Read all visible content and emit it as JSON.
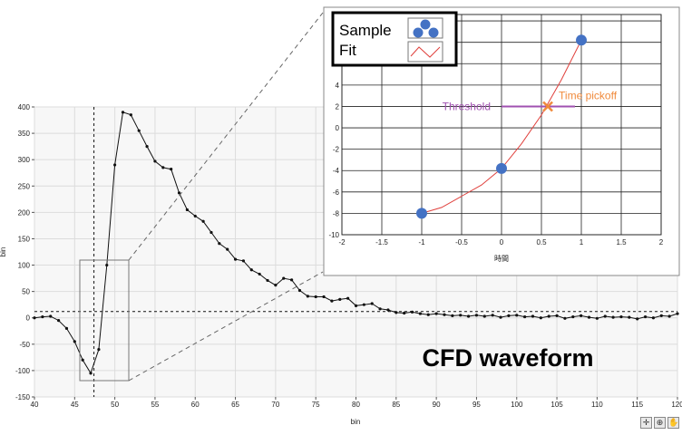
{
  "chart_data": [
    {
      "type": "line",
      "title": "",
      "xlabel": "bin",
      "ylabel": "bin",
      "xlim": [
        40,
        120
      ],
      "ylim": [
        -150,
        400
      ],
      "xticks": [
        40,
        45,
        50,
        55,
        60,
        65,
        70,
        75,
        80,
        85,
        90,
        95,
        100,
        105,
        110,
        115,
        120
      ],
      "yticks": [
        -150,
        -100,
        -50,
        0,
        50,
        100,
        150,
        200,
        250,
        300,
        350,
        400
      ],
      "grid": true,
      "annotation": "CFD waveform",
      "reference_lines": {
        "vertical_x": 47.4,
        "horizontal_y": 12
      },
      "series": [
        {
          "x": [
            40,
            41,
            42,
            43,
            44,
            45,
            46,
            47,
            48,
            49,
            50,
            51,
            52,
            53,
            54,
            55,
            56,
            57,
            58,
            59,
            60,
            61,
            62,
            63,
            64,
            65,
            66,
            67,
            68,
            69,
            70,
            71,
            72,
            73,
            74,
            75,
            76,
            77,
            78,
            79,
            80,
            81,
            82,
            83,
            84,
            85,
            86,
            87,
            88,
            89,
            90,
            91,
            92,
            93,
            94,
            95,
            96,
            97,
            98,
            99,
            100,
            101,
            102,
            103,
            104,
            105,
            106,
            107,
            108,
            109,
            110,
            111,
            112,
            113,
            114,
            115,
            116,
            117,
            118,
            119,
            120
          ],
          "values": [
            0,
            2,
            3,
            -5,
            -20,
            -45,
            -80,
            -105,
            -60,
            100,
            290,
            390,
            385,
            355,
            325,
            297,
            285,
            282,
            237,
            205,
            193,
            183,
            162,
            141,
            130,
            111,
            108,
            91,
            83,
            71,
            62,
            75,
            72,
            52,
            41,
            40,
            40,
            32,
            35,
            37,
            23,
            25,
            27,
            17,
            15,
            10,
            9,
            11,
            8,
            6,
            8,
            6,
            4,
            5,
            3,
            5,
            3,
            5,
            1,
            4,
            5,
            2,
            3,
            0,
            3,
            4,
            -1,
            2,
            4,
            1,
            -1,
            3,
            1,
            2,
            1,
            -2,
            2,
            0,
            4,
            3,
            8
          ]
        }
      ]
    },
    {
      "type": "scatter",
      "title": "",
      "xlabel": "時間",
      "ylabel": "",
      "xlim": [
        -2,
        2
      ],
      "ylim": [
        -10,
        10
      ],
      "xticks": [
        -2,
        -1.5,
        -1,
        -0.5,
        0,
        0.5,
        1,
        1.5,
        2
      ],
      "yticks": [
        -10,
        -8,
        -6,
        -4,
        -2,
        0,
        2,
        4
      ],
      "grid": true,
      "legend": "top-left",
      "series": [
        {
          "name": "Sample",
          "x": [
            -1,
            0,
            1
          ],
          "values": [
            -8,
            -3.8,
            8.2
          ],
          "color": "#4472c4"
        },
        {
          "name": "Fit",
          "x": [
            -1,
            -0.75,
            -0.5,
            -0.25,
            0,
            0.25,
            0.5,
            0.75,
            1
          ],
          "values": [
            -8,
            -7.45,
            -6.4,
            -5.35,
            -3.8,
            -1.5,
            1.2,
            4.5,
            8.2
          ],
          "color": "#e0403c"
        }
      ],
      "threshold": {
        "label": "Threshold",
        "y": 2,
        "x_start": 0,
        "x_end": 0.92,
        "color": "#a050b0"
      },
      "pickoff": {
        "label": "Time pickoff",
        "x": 0.58,
        "y": 2,
        "color": "#f08a3c"
      }
    }
  ],
  "toolbar": {
    "icons": [
      "crosshair-icon",
      "zoom-icon",
      "pan-icon"
    ],
    "glyphs": [
      "✛",
      "⊕",
      "✋"
    ]
  }
}
